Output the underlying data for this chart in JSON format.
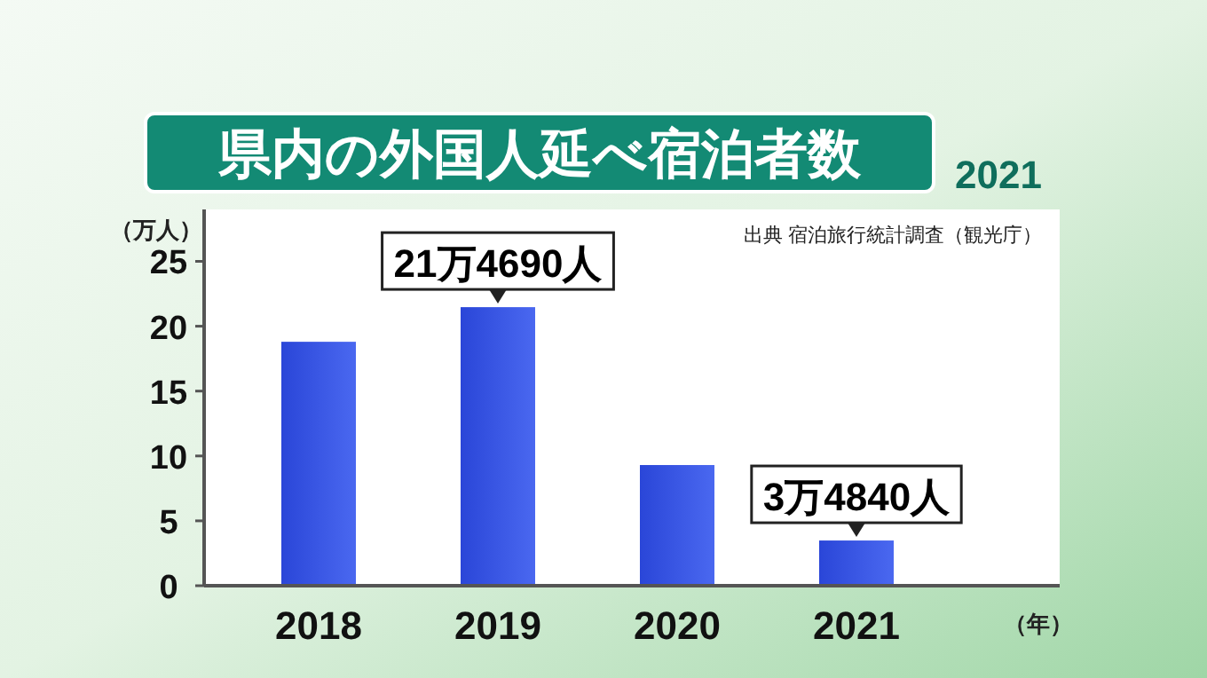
{
  "chart_data": {
    "type": "bar",
    "title": "県内の外国人延べ宿泊者数",
    "subtitle": "2021",
    "xlabel": "（年）",
    "ylabel": "（万人）",
    "categories": [
      "2018",
      "2019",
      "2020",
      "2021"
    ],
    "values": [
      18.8,
      21.469,
      9.3,
      3.484
    ],
    "color": "#2a46d8",
    "ylim": [
      0,
      29
    ],
    "yticks": [
      0,
      5,
      10,
      15,
      20,
      25
    ],
    "grid": false,
    "annotations": [
      "出典 宿泊旅行統計調査（観光庁）",
      {
        "text": "21万4690人",
        "x": "2019",
        "y": 21.469
      },
      {
        "text": "3万4840人",
        "x": "2021",
        "y": 3.484
      }
    ]
  }
}
